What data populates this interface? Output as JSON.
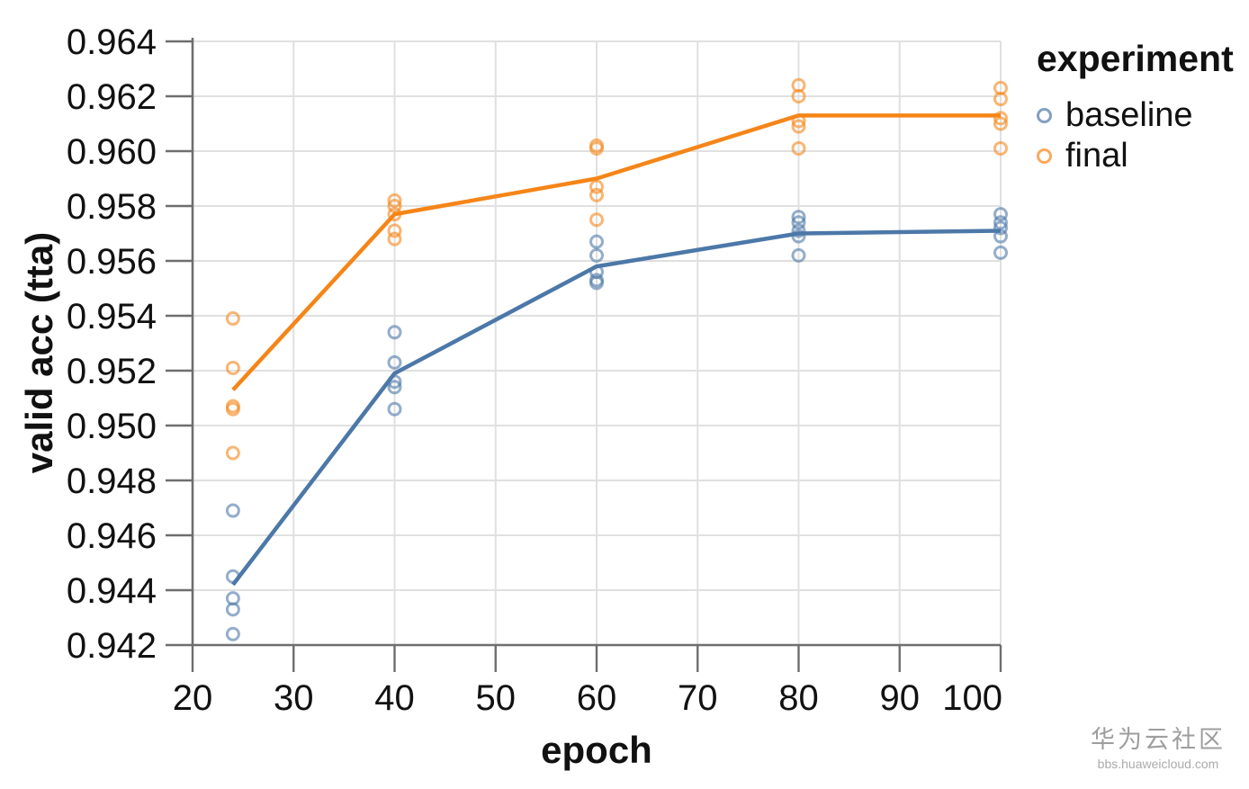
{
  "chart_data": {
    "type": "scatter",
    "title": "",
    "xlabel": "epoch",
    "ylabel": "valid acc (tta)",
    "legend_title": "experiment",
    "legend_position": "top-right-outside",
    "grid": true,
    "x_domain": [
      20,
      100
    ],
    "y_domain": [
      0.942,
      0.964
    ],
    "x_ticks": [
      20,
      30,
      40,
      50,
      60,
      70,
      80,
      90,
      100
    ],
    "x_tick_labels": [
      "20",
      "30",
      "40",
      "50",
      "60",
      "70",
      "80",
      "90",
      "100"
    ],
    "y_ticks": [
      0.942,
      0.944,
      0.946,
      0.948,
      0.95,
      0.952,
      0.954,
      0.956,
      0.958,
      0.96,
      0.962,
      0.964
    ],
    "y_tick_labels": [
      "0.942",
      "0.944",
      "0.946",
      "0.948",
      "0.950",
      "0.952",
      "0.954",
      "0.956",
      "0.958",
      "0.960",
      "0.962",
      "0.964"
    ],
    "epochs": [
      24,
      40,
      60,
      80,
      100
    ],
    "series": [
      {
        "name": "baseline",
        "color": "#4c78a8",
        "mean": [
          0.9442,
          0.9519,
          0.9558,
          0.957,
          0.9571
        ],
        "runs": [
          [
            0.9469,
            0.9445,
            0.9437,
            0.9433,
            0.9424
          ],
          [
            0.9534,
            0.9523,
            0.9516,
            0.9514,
            0.9506
          ],
          [
            0.9567,
            0.9562,
            0.9556,
            0.9553,
            0.9552
          ],
          [
            0.9576,
            0.9574,
            0.9571,
            0.9569,
            0.9562
          ],
          [
            0.9577,
            0.9574,
            0.9572,
            0.9569,
            0.9563
          ]
        ]
      },
      {
        "name": "final",
        "color": "#f58518",
        "mean": [
          0.9513,
          0.9577,
          0.959,
          0.9613,
          0.9613
        ],
        "runs": [
          [
            0.9539,
            0.9521,
            0.9507,
            0.9506,
            0.949
          ],
          [
            0.9582,
            0.958,
            0.9577,
            0.9571,
            0.9568
          ],
          [
            0.9602,
            0.9601,
            0.9587,
            0.9584,
            0.9575
          ],
          [
            0.9624,
            0.962,
            0.9611,
            0.9609,
            0.9601
          ],
          [
            0.9623,
            0.9619,
            0.9612,
            0.961,
            0.9601
          ]
        ]
      }
    ],
    "style": {
      "axis_color": "#6e6e6e",
      "grid_color": "#e0e0e0",
      "tick_label_color": "#111111",
      "point_opacity": 0.6
    }
  },
  "watermark": {
    "line1": "华为云社区",
    "line2": "bbs.huaweicloud.com"
  }
}
